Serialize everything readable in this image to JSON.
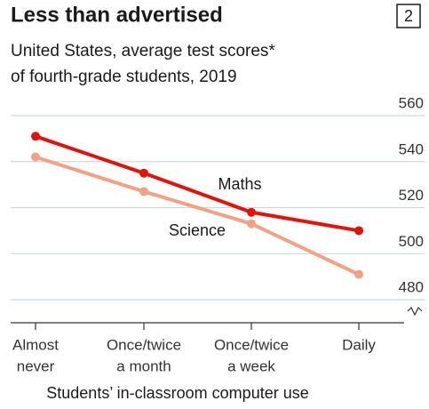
{
  "chart_data": {
    "type": "line",
    "title": "Less than advertised",
    "badge": "2",
    "subtitle": [
      "United States, average test scores*",
      "of fourth-grade students, 2019"
    ],
    "categories": [
      [
        "Almost",
        "never"
      ],
      [
        "Once/twice",
        "a month"
      ],
      [
        "Once/twice",
        "a week"
      ],
      [
        "Daily"
      ]
    ],
    "series": [
      {
        "name": "Maths",
        "color": "#e3120b",
        "values": [
          551,
          535,
          518,
          510
        ]
      },
      {
        "name": "Science",
        "color": "#f2a283",
        "values": [
          542,
          527,
          513,
          491
        ]
      }
    ],
    "xlabel": "Students’ in-classroom computer use",
    "ylim": [
      470,
      560
    ],
    "yticks": [
      560,
      540,
      520,
      500,
      480
    ],
    "grid": true
  }
}
